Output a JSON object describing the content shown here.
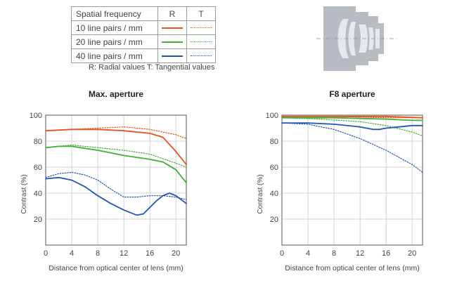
{
  "legend": {
    "header": {
      "label": "Spatial frequency",
      "r": "R",
      "t": "T"
    },
    "rows": [
      {
        "label": "10 line pairs / mm",
        "color": "#e8521e"
      },
      {
        "label": "20 line pairs / mm",
        "color": "#3db035"
      },
      {
        "label": "40 line pairs / mm",
        "color": "#1f56b5"
      }
    ],
    "note": "R: Radial values  T: Tangential values"
  },
  "lens_diagram": {
    "icon": "lens-cross-section-icon"
  },
  "chart_data": [
    {
      "type": "line",
      "title": "Max. aperture",
      "xlabel": "Distance from optical center of lens (mm)",
      "ylabel": "Contrast (%)",
      "xlim": [
        0,
        21.6
      ],
      "ylim": [
        0,
        100
      ],
      "xticks": [
        0,
        4,
        8,
        12,
        16,
        20
      ],
      "yticks": [
        20,
        40,
        60,
        80,
        100
      ],
      "series": [
        {
          "name": "10 line pairs / mm R",
          "color": "#e8521e",
          "style": "solid",
          "x": [
            0,
            4,
            8,
            12,
            16,
            18,
            20,
            21.6
          ],
          "y": [
            88,
            89,
            89,
            88,
            86,
            83,
            72,
            62
          ]
        },
        {
          "name": "10 line pairs / mm T",
          "color": "#e8521e",
          "style": "dotted",
          "x": [
            0,
            4,
            8,
            12,
            16,
            20,
            21.6
          ],
          "y": [
            88,
            89,
            90,
            91,
            89,
            85,
            82
          ]
        },
        {
          "name": "20 line pairs / mm R",
          "color": "#3db035",
          "style": "solid",
          "x": [
            0,
            2,
            4,
            8,
            12,
            16,
            18,
            20,
            21.6
          ],
          "y": [
            75,
            76,
            76,
            73,
            69,
            66,
            64,
            58,
            48
          ]
        },
        {
          "name": "20 line pairs / mm T",
          "color": "#3db035",
          "style": "dotted",
          "x": [
            0,
            4,
            8,
            12,
            16,
            20,
            21.6
          ],
          "y": [
            75,
            77,
            75,
            73,
            70,
            63,
            60
          ]
        },
        {
          "name": "40 line pairs / mm R",
          "color": "#1f56b5",
          "style": "solid",
          "x": [
            0,
            2,
            4,
            6,
            8,
            10,
            12,
            14,
            15,
            16,
            17,
            18,
            19,
            20,
            21.6
          ],
          "y": [
            51,
            52,
            50,
            45,
            38,
            32,
            27,
            23,
            24,
            29,
            34,
            38,
            40,
            38,
            32
          ]
        },
        {
          "name": "40 line pairs / mm T",
          "color": "#1f56b5",
          "style": "dotted",
          "x": [
            0,
            2,
            4,
            6,
            8,
            10,
            12,
            14,
            16,
            18,
            20,
            21.6
          ],
          "y": [
            52,
            55,
            56,
            54,
            50,
            43,
            37,
            37,
            38,
            38,
            37,
            35
          ]
        }
      ]
    },
    {
      "type": "line",
      "title": "F8 aperture",
      "xlabel": "Distance from optical center of lens (mm)",
      "ylabel": "Contrast (%)",
      "xlim": [
        0,
        21.6
      ],
      "ylim": [
        0,
        100
      ],
      "xticks": [
        0,
        4,
        8,
        12,
        16,
        20
      ],
      "yticks": [
        20,
        40,
        60,
        80,
        100
      ],
      "series": [
        {
          "name": "10 line pairs / mm R",
          "color": "#e8521e",
          "style": "solid",
          "x": [
            0,
            8,
            16,
            21.6
          ],
          "y": [
            99,
            99,
            99,
            98
          ]
        },
        {
          "name": "10 line pairs / mm T",
          "color": "#e8521e",
          "style": "dotted",
          "x": [
            0,
            8,
            16,
            21.6
          ],
          "y": [
            99,
            99,
            98,
            98
          ]
        },
        {
          "name": "20 line pairs / mm R",
          "color": "#3db035",
          "style": "solid",
          "x": [
            0,
            8,
            16,
            20,
            21.6
          ],
          "y": [
            98,
            98,
            97,
            96,
            96
          ]
        },
        {
          "name": "20 line pairs / mm T",
          "color": "#3db035",
          "style": "dotted",
          "x": [
            0,
            6,
            12,
            16,
            20,
            21.6
          ],
          "y": [
            98,
            97,
            95,
            92,
            87,
            84
          ]
        },
        {
          "name": "40 line pairs / mm R",
          "color": "#1f56b5",
          "style": "solid",
          "x": [
            0,
            4,
            8,
            12,
            14,
            15,
            16,
            18,
            20,
            21.6
          ],
          "y": [
            94,
            94,
            93,
            91,
            89,
            89,
            90,
            91,
            92,
            92
          ]
        },
        {
          "name": "40 line pairs / mm T",
          "color": "#1f56b5",
          "style": "dotted",
          "x": [
            0,
            4,
            8,
            12,
            16,
            20,
            21.6
          ],
          "y": [
            94,
            93,
            89,
            82,
            73,
            62,
            56
          ]
        }
      ]
    }
  ]
}
